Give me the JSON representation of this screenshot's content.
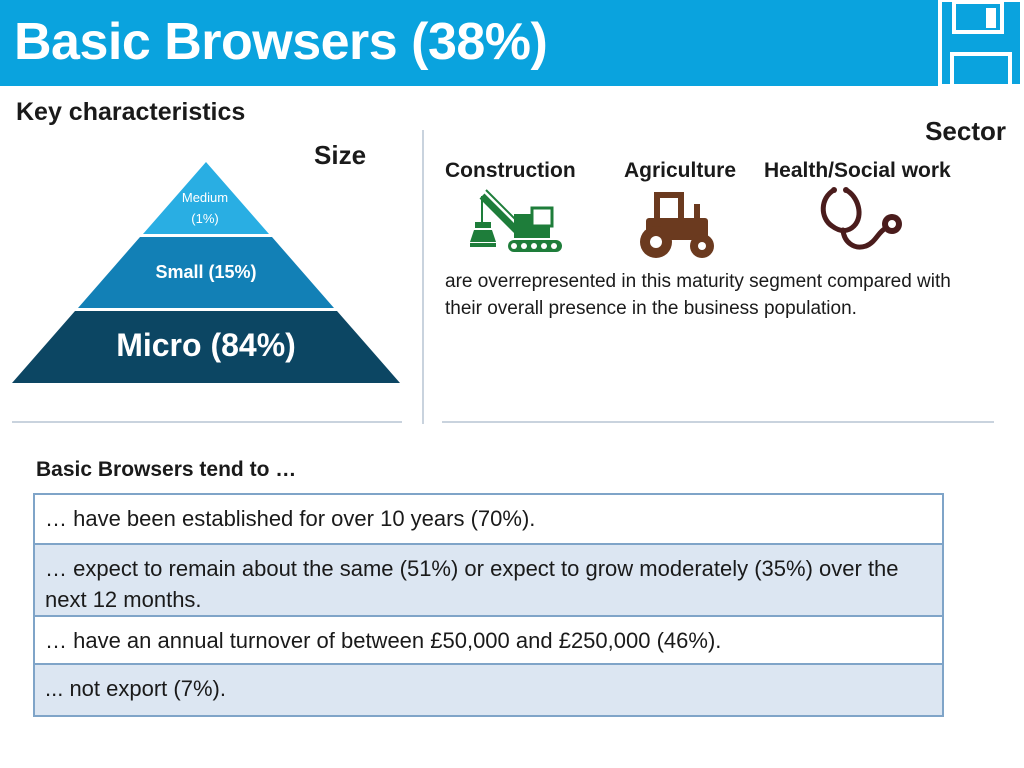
{
  "header": {
    "title": "Basic Browsers (38%)",
    "icon": "floppy-disk-icon",
    "background_color": "#0aa3de"
  },
  "key_characteristics": {
    "heading": "Key characteristics",
    "size_label": "Size",
    "sector_label": "Sector"
  },
  "pyramid": {
    "tiers": [
      {
        "name": "Medium",
        "value": "(1%)",
        "color": "#29aee3"
      },
      {
        "name": "Small (15%)",
        "color": "#1280b6"
      },
      {
        "name": "Micro (84%)",
        "color": "#0c4663"
      }
    ]
  },
  "sectors": {
    "items": [
      {
        "name": "Construction",
        "icon": "crane-icon",
        "color": "#1e7d3a"
      },
      {
        "name": "Agriculture",
        "icon": "tractor-icon",
        "color": "#6b3a1f"
      },
      {
        "name": "Health/Social work",
        "icon": "stethoscope-icon",
        "color": "#4a1c1c"
      }
    ],
    "description": "are overrepresented in this maturity segment compared with their overall presence in the business population."
  },
  "tend_to": {
    "heading": "Basic Browsers tend to …",
    "rows": [
      "… have been established for over 10 years (70%).",
      "… expect to remain about the same (51%) or expect to grow moderately (35%) over the next 12 months.",
      "… have an annual turnover of between £50,000 and £250,000 (46%).",
      "... not export (7%)."
    ],
    "border_color": "#7fa4c8",
    "alt_row_color": "#dce6f2"
  }
}
